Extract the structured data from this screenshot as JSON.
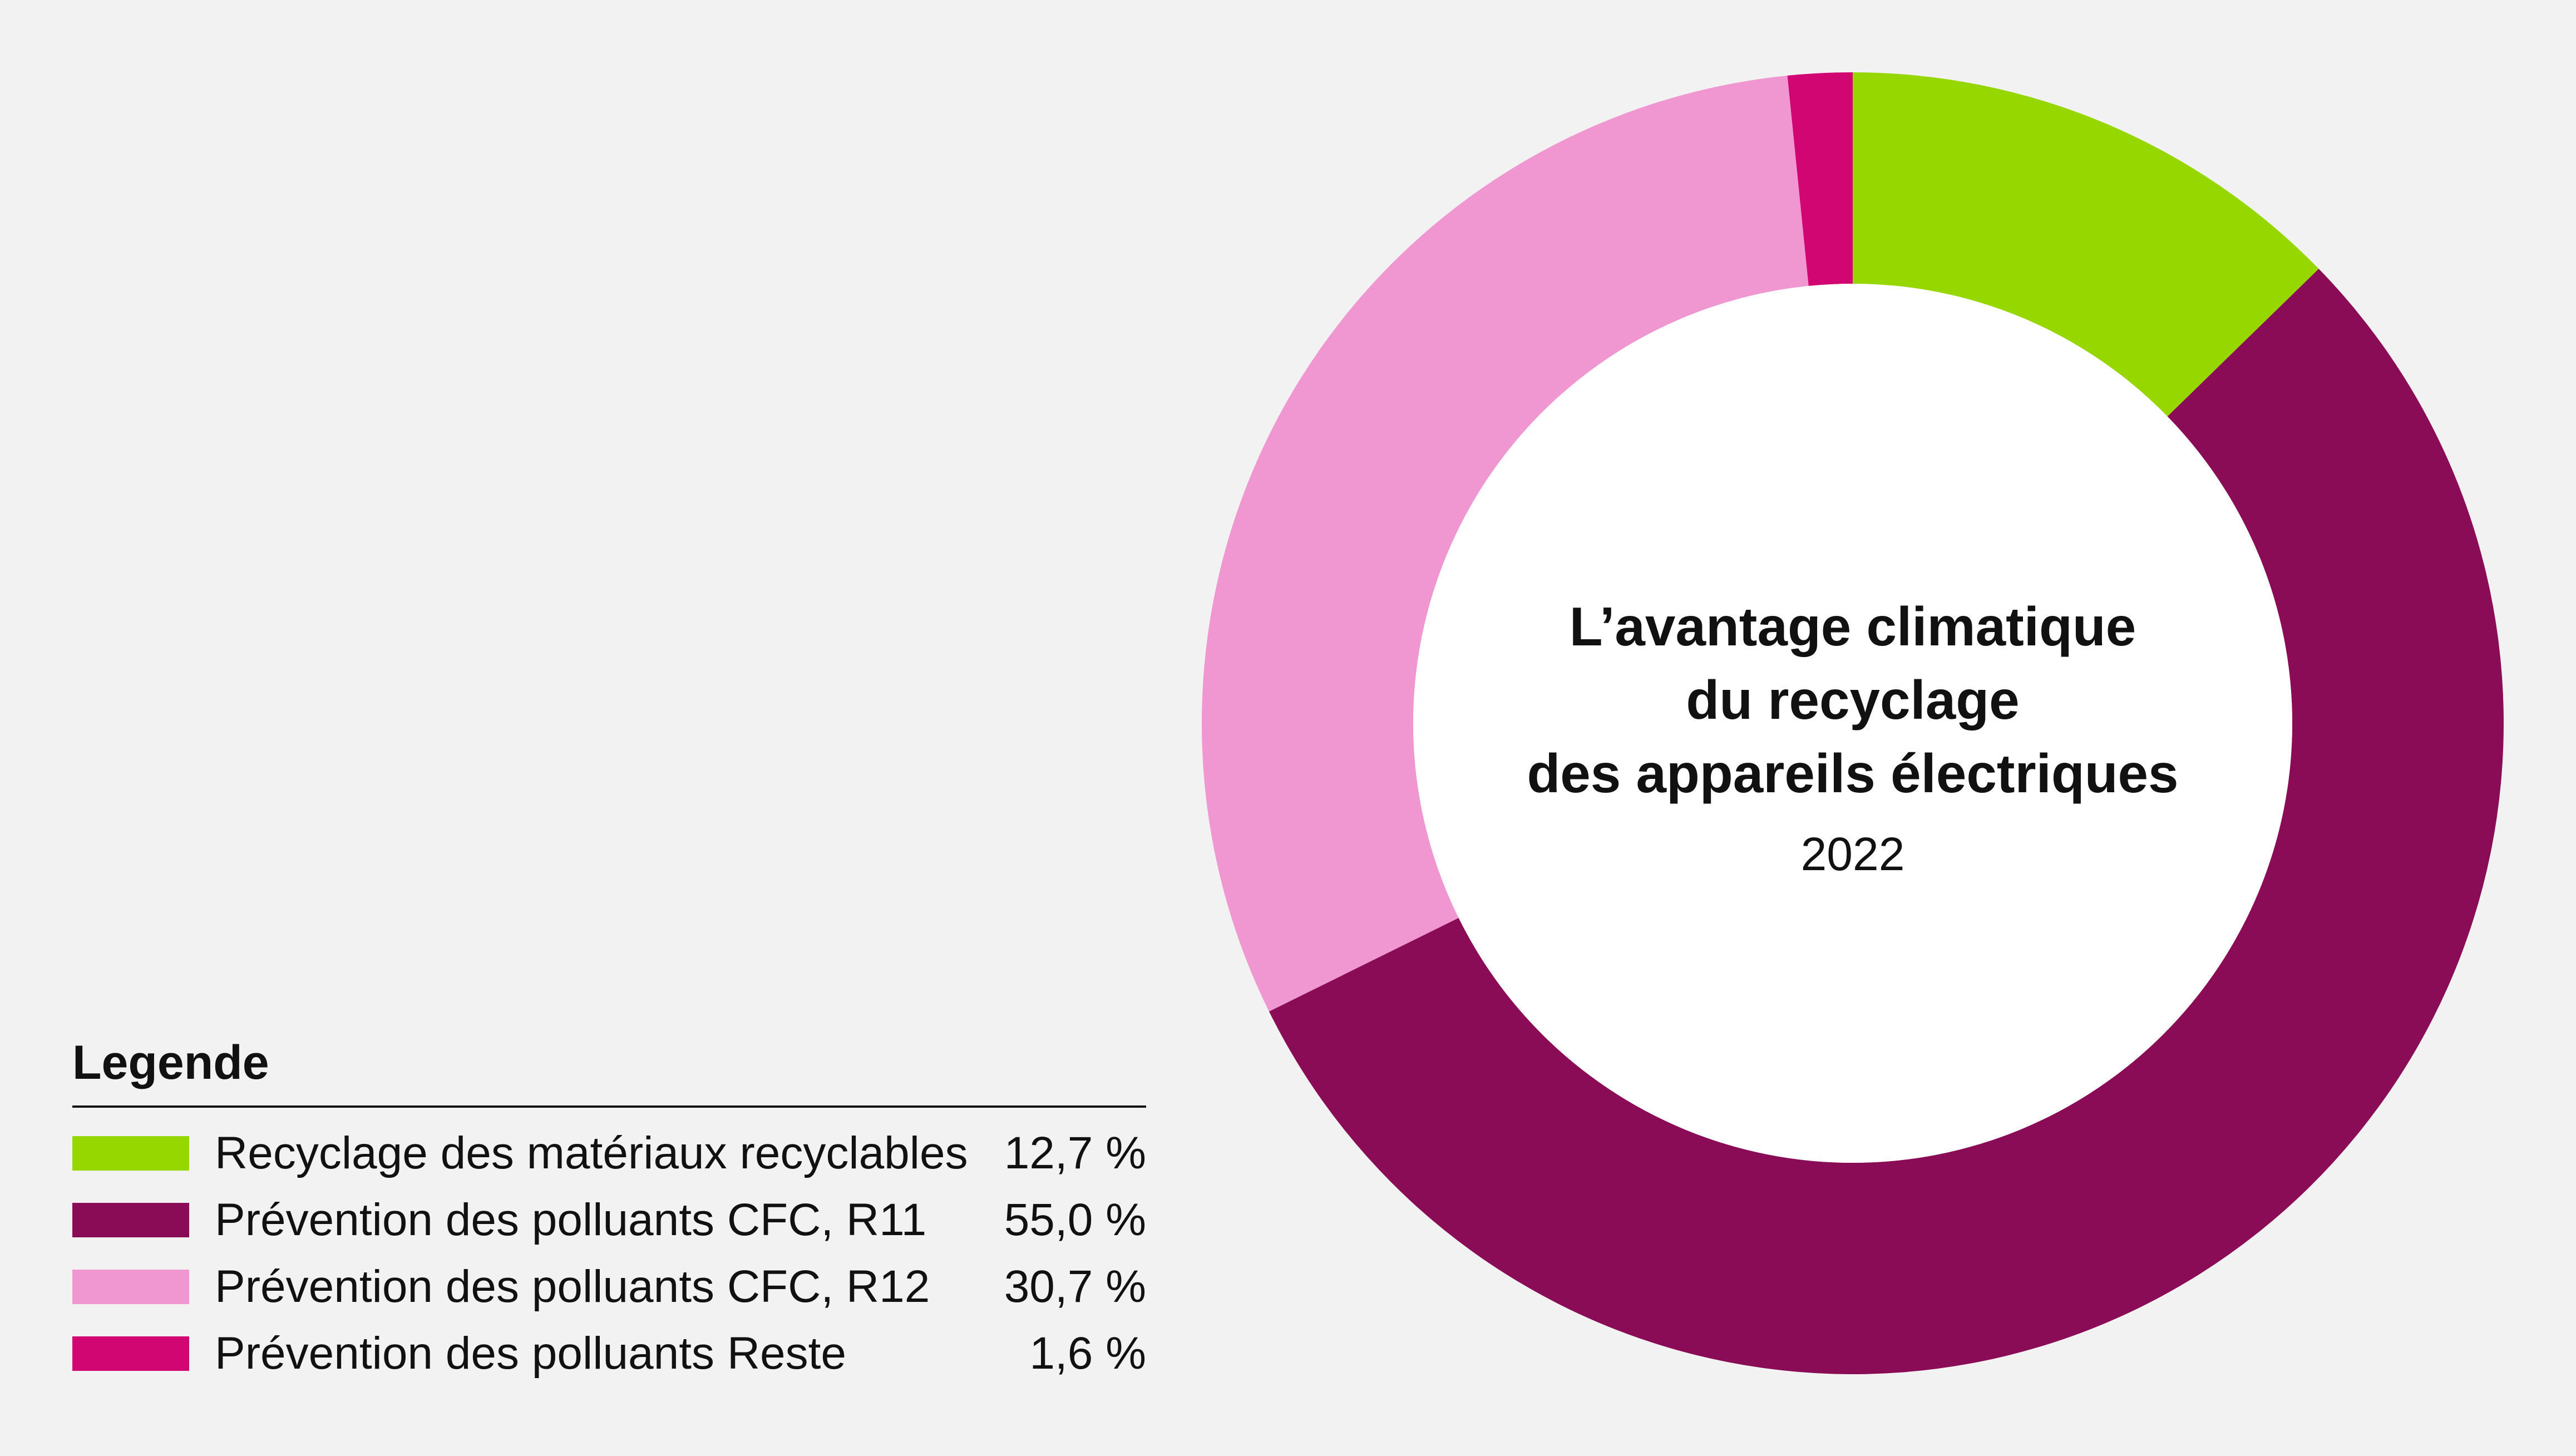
{
  "chart_data": {
    "type": "pie",
    "variant": "donut",
    "title": [
      "L’avantage climatique",
      "du recyclage",
      "des appareils électriques"
    ],
    "subtitle": "2022",
    "legend_title": "Legende",
    "legend_placement": "bottom-left",
    "slices": [
      {
        "label": "Recyclage des matériaux recyclables",
        "value": 12.7,
        "value_label": "12,7 %",
        "color": "#97d700"
      },
      {
        "label": "Prévention des polluants CFC, R11",
        "value": 55.0,
        "value_label": "55,0 %",
        "color": "#8a0c57"
      },
      {
        "label": "Prévention des polluants CFC, R12",
        "value": 30.7,
        "value_label": "30,7 %",
        "color": "#f096d0"
      },
      {
        "label": "Prévention des polluants Reste",
        "value": 1.6,
        "value_label": "1,6 %",
        "color": "#d20672"
      }
    ]
  },
  "colors": {
    "background": "#f2f2f2",
    "hole": "#ffffff",
    "text": "#111111"
  }
}
